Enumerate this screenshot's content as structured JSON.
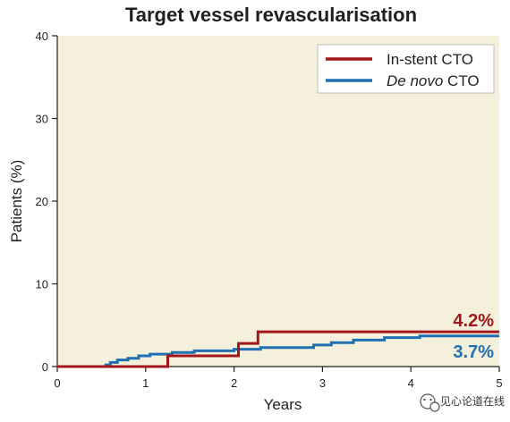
{
  "chart_data": {
    "type": "line",
    "step": true,
    "title": "Target vessel revascularisation",
    "xlabel": "Years",
    "ylabel": "Patients (%)",
    "xlim": [
      0,
      5
    ],
    "ylim": [
      0,
      40
    ],
    "x_ticks": [
      "0",
      "1",
      "2",
      "3",
      "4",
      "5"
    ],
    "y_ticks": [
      "0",
      "10",
      "20",
      "30",
      "40"
    ],
    "grid": false,
    "background_color": "#f4f0dc",
    "legend_position": "top-right",
    "series": [
      {
        "name_prefix": "In-stent CTO",
        "name_italic": "",
        "name_suffix": "",
        "color": "#a3171b",
        "end_label": "4.2%",
        "points": [
          [
            0,
            0
          ],
          [
            1.25,
            0
          ],
          [
            1.25,
            1.3
          ],
          [
            2.05,
            1.3
          ],
          [
            2.05,
            2.8
          ],
          [
            2.27,
            2.8
          ],
          [
            2.27,
            4.2
          ],
          [
            5,
            4.2
          ]
        ]
      },
      {
        "name_prefix": "",
        "name_italic": "De novo",
        "name_suffix": " CTO",
        "color": "#1f6fb2",
        "end_label": "3.7%",
        "points": [
          [
            0,
            0
          ],
          [
            0.55,
            0
          ],
          [
            0.55,
            0.2
          ],
          [
            0.6,
            0.2
          ],
          [
            0.6,
            0.5
          ],
          [
            0.68,
            0.5
          ],
          [
            0.68,
            0.8
          ],
          [
            0.8,
            0.8
          ],
          [
            0.8,
            1.0
          ],
          [
            0.92,
            1.0
          ],
          [
            0.92,
            1.3
          ],
          [
            1.05,
            1.3
          ],
          [
            1.05,
            1.5
          ],
          [
            1.3,
            1.5
          ],
          [
            1.3,
            1.7
          ],
          [
            1.55,
            1.7
          ],
          [
            1.55,
            1.9
          ],
          [
            2.0,
            1.9
          ],
          [
            2.0,
            2.1
          ],
          [
            2.3,
            2.1
          ],
          [
            2.3,
            2.3
          ],
          [
            2.9,
            2.3
          ],
          [
            2.9,
            2.6
          ],
          [
            3.1,
            2.6
          ],
          [
            3.1,
            2.9
          ],
          [
            3.35,
            2.9
          ],
          [
            3.35,
            3.2
          ],
          [
            3.7,
            3.2
          ],
          [
            3.7,
            3.5
          ],
          [
            4.1,
            3.5
          ],
          [
            4.1,
            3.7
          ],
          [
            5,
            3.7
          ]
        ]
      }
    ]
  },
  "watermark": {
    "icon": "wechat-icon",
    "text": "见心论道在线"
  }
}
